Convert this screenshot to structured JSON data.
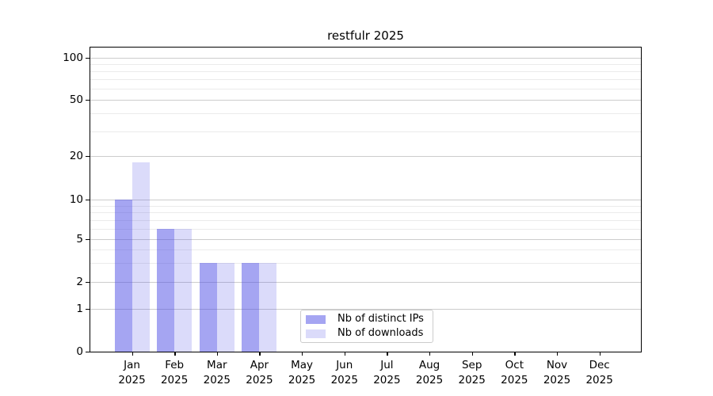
{
  "figure": {
    "background": "#ffffff"
  },
  "chart_data": {
    "type": "bar",
    "title": "restfulr 2025",
    "x_categories": [
      {
        "month": "Jan",
        "year": "2025"
      },
      {
        "month": "Feb",
        "year": "2025"
      },
      {
        "month": "Mar",
        "year": "2025"
      },
      {
        "month": "Apr",
        "year": "2025"
      },
      {
        "month": "May",
        "year": "2025"
      },
      {
        "month": "Jun",
        "year": "2025"
      },
      {
        "month": "Jul",
        "year": "2025"
      },
      {
        "month": "Aug",
        "year": "2025"
      },
      {
        "month": "Sep",
        "year": "2025"
      },
      {
        "month": "Oct",
        "year": "2025"
      },
      {
        "month": "Nov",
        "year": "2025"
      },
      {
        "month": "Dec",
        "year": "2025"
      }
    ],
    "series": [
      {
        "name": "Nb of distinct IPs",
        "color": "rgba(75,75,230,0.5)",
        "values": [
          10,
          6,
          3,
          3,
          0,
          0,
          0,
          0,
          0,
          0,
          0,
          0
        ]
      },
      {
        "name": "Nb of downloads",
        "color": "rgba(75,75,230,0.2)",
        "values": [
          18,
          6,
          3,
          3,
          0,
          0,
          0,
          0,
          0,
          0,
          0,
          0
        ]
      }
    ],
    "y_axis": {
      "scale": "log-like with 0 baseline",
      "major_ticks": [
        0,
        1,
        2,
        5,
        10,
        20,
        50,
        100
      ],
      "minor_gridlines": [
        3,
        4,
        6,
        7,
        8,
        9,
        30,
        40,
        60,
        70,
        80,
        90
      ],
      "ylim": [
        0,
        120
      ]
    },
    "legend": {
      "position": "inside-bottom-center"
    },
    "grid": "horizontal",
    "colors": {
      "grid_major": "#cccccc",
      "grid_minor": "#ebebeb",
      "axis": "#000000",
      "legend_border": "#cccccc"
    }
  }
}
